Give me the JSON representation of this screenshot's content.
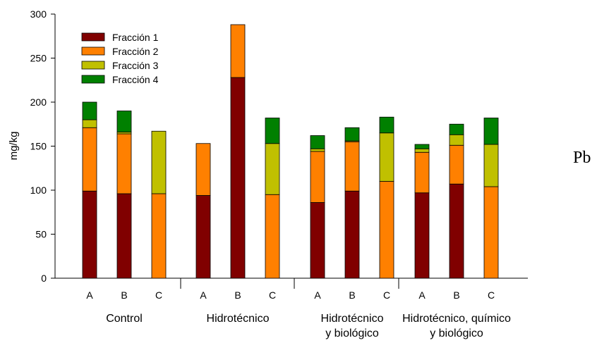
{
  "chart_data": {
    "type": "bar",
    "stacked": true,
    "title": "",
    "xlabel": "",
    "ylabel": "mg/kg",
    "ylim": [
      0,
      300
    ],
    "yticks": [
      0,
      50,
      100,
      150,
      200,
      250,
      300
    ],
    "grid": false,
    "legend_position": "top-left",
    "side_label": "Pb",
    "groups": [
      {
        "name": "Control",
        "lines": [
          "Control"
        ],
        "categories": [
          "A",
          "B",
          "C"
        ]
      },
      {
        "name": "Hidrotécnico",
        "lines": [
          "Hidrotécnico"
        ],
        "categories": [
          "A",
          "B",
          "C"
        ]
      },
      {
        "name": "Hidrotécnico y biológico",
        "lines": [
          "Hidrotécnico",
          "y biológico"
        ],
        "categories": [
          "A",
          "B",
          "C"
        ]
      },
      {
        "name": "Hidrotécnico, químico y biológico",
        "lines": [
          "Hidrotécnico, químico",
          "y biológico"
        ],
        "categories": [
          "A",
          "B",
          "C"
        ]
      }
    ],
    "series": [
      {
        "name": "Fracción 1",
        "color": "#800000",
        "values": [
          99,
          96,
          0,
          94,
          228,
          0,
          86,
          99,
          0,
          97,
          107,
          0
        ]
      },
      {
        "name": "Fracción 2",
        "color": "#ff8000",
        "values": [
          72,
          68,
          96,
          59,
          60,
          95,
          58,
          56,
          110,
          46,
          44,
          104
        ]
      },
      {
        "name": "Fracción 3",
        "color": "#c0c000",
        "values": [
          9,
          2,
          71,
          0,
          0,
          58,
          3,
          1,
          55,
          4,
          12,
          48
        ]
      },
      {
        "name": "Fracción 4",
        "color": "#008000",
        "values": [
          20,
          24,
          0,
          0,
          0,
          29,
          15,
          15,
          18,
          5,
          12,
          30
        ]
      }
    ]
  }
}
